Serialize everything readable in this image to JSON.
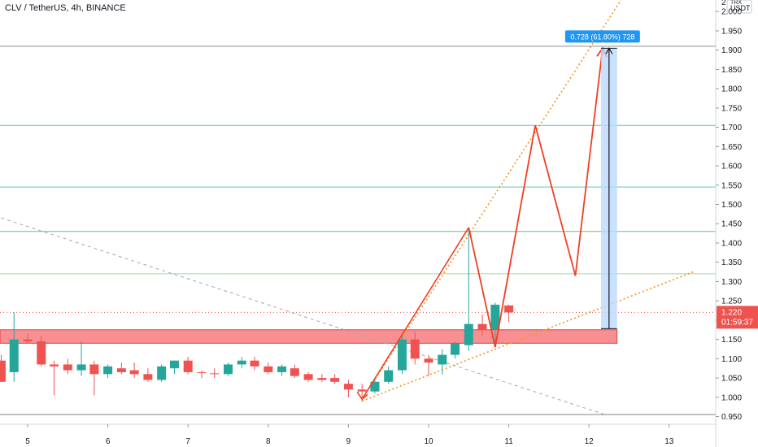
{
  "header": {
    "title": "CLV / TetherUS, 4h, BINANCE"
  },
  "axis": {
    "currency": "USDT",
    "currency_top": "TRX",
    "top_tick": "2"
  },
  "price_badge": {
    "price": "1.220",
    "countdown": "01:59:37"
  },
  "measure_label": "0.728 (61.80%) 728",
  "colors": {
    "up": "#26a69a",
    "down": "#ef5350",
    "projection": "#f23f22",
    "trend": "#f7931a",
    "zone_fill": "#f77c80",
    "zone_border": "#e04040",
    "measure_fill": "#bbd9fb",
    "measure_label_bg": "#2196f3",
    "hline_teal": "#5ec8c2",
    "hline_green": "#6fbf73",
    "price_line": "#ef5350"
  },
  "chart_data": {
    "type": "candlestick",
    "symbol": "CLV / TetherUS",
    "interval": "4h",
    "exchange": "BINANCE",
    "ylim": [
      0.93,
      2.03
    ],
    "y_ticks": [
      "2.000",
      "1.950",
      "1.900",
      "1.850",
      "1.800",
      "1.750",
      "1.700",
      "1.650",
      "1.600",
      "1.550",
      "1.500",
      "1.450",
      "1.400",
      "1.350",
      "1.300",
      "1.250",
      "1.200",
      "1.150",
      "1.100",
      "1.050",
      "1.000",
      "0.950"
    ],
    "x_ticks": [
      {
        "label": "5",
        "day": 5
      },
      {
        "label": "6",
        "day": 6
      },
      {
        "label": "7",
        "day": 7
      },
      {
        "label": "8",
        "day": 8
      },
      {
        "label": "9",
        "day": 9
      },
      {
        "label": "10",
        "day": 10
      },
      {
        "label": "11",
        "day": 11
      },
      {
        "label": "12",
        "day": 12
      },
      {
        "label": "13",
        "day": 13
      }
    ],
    "candles": [
      {
        "day": 4.67,
        "open": 1.095,
        "high": 1.11,
        "low": 1.04,
        "close": 1.04
      },
      {
        "day": 4.83,
        "open": 1.065,
        "high": 1.22,
        "low": 1.04,
        "close": 1.15
      },
      {
        "day": 5.0,
        "open": 1.15,
        "high": 1.165,
        "low": 1.14,
        "close": 1.145
      },
      {
        "day": 5.17,
        "open": 1.145,
        "high": 1.16,
        "low": 1.08,
        "close": 1.085
      },
      {
        "day": 5.33,
        "open": 1.085,
        "high": 1.095,
        "low": 1.005,
        "close": 1.08
      },
      {
        "day": 5.5,
        "open": 1.085,
        "high": 1.1,
        "low": 1.06,
        "close": 1.07
      },
      {
        "day": 5.67,
        "open": 1.07,
        "high": 1.145,
        "low": 1.055,
        "close": 1.085
      },
      {
        "day": 5.83,
        "open": 1.085,
        "high": 1.095,
        "low": 1.005,
        "close": 1.06
      },
      {
        "day": 6.0,
        "open": 1.06,
        "high": 1.085,
        "low": 1.05,
        "close": 1.08
      },
      {
        "day": 6.17,
        "open": 1.075,
        "high": 1.09,
        "low": 1.06,
        "close": 1.065
      },
      {
        "day": 6.33,
        "open": 1.07,
        "high": 1.09,
        "low": 1.05,
        "close": 1.06
      },
      {
        "day": 6.5,
        "open": 1.06,
        "high": 1.075,
        "low": 1.04,
        "close": 1.045
      },
      {
        "day": 6.67,
        "open": 1.045,
        "high": 1.085,
        "low": 1.04,
        "close": 1.08
      },
      {
        "day": 6.83,
        "open": 1.075,
        "high": 1.095,
        "low": 1.06,
        "close": 1.095
      },
      {
        "day": 7.0,
        "open": 1.095,
        "high": 1.105,
        "low": 1.06,
        "close": 1.065
      },
      {
        "day": 7.17,
        "open": 1.065,
        "high": 1.07,
        "low": 1.05,
        "close": 1.063
      },
      {
        "day": 7.33,
        "open": 1.062,
        "high": 1.075,
        "low": 1.05,
        "close": 1.06
      },
      {
        "day": 7.5,
        "open": 1.06,
        "high": 1.09,
        "low": 1.055,
        "close": 1.085
      },
      {
        "day": 7.67,
        "open": 1.085,
        "high": 1.105,
        "low": 1.075,
        "close": 1.095
      },
      {
        "day": 7.83,
        "open": 1.095,
        "high": 1.105,
        "low": 1.07,
        "close": 1.08
      },
      {
        "day": 8.0,
        "open": 1.08,
        "high": 1.09,
        "low": 1.06,
        "close": 1.065
      },
      {
        "day": 8.17,
        "open": 1.065,
        "high": 1.085,
        "low": 1.055,
        "close": 1.08
      },
      {
        "day": 8.33,
        "open": 1.075,
        "high": 1.085,
        "low": 1.05,
        "close": 1.055
      },
      {
        "day": 8.5,
        "open": 1.06,
        "high": 1.065,
        "low": 1.04,
        "close": 1.045
      },
      {
        "day": 8.67,
        "open": 1.05,
        "high": 1.06,
        "low": 1.04,
        "close": 1.045
      },
      {
        "day": 8.83,
        "open": 1.05,
        "high": 1.06,
        "low": 1.035,
        "close": 1.04
      },
      {
        "day": 9.0,
        "open": 1.035,
        "high": 1.045,
        "low": 1.0,
        "close": 1.02
      },
      {
        "day": 9.17,
        "open": 1.02,
        "high": 1.035,
        "low": 0.99,
        "close": 1.015
      },
      {
        "day": 9.33,
        "open": 1.015,
        "high": 1.05,
        "low": 1.01,
        "close": 1.04
      },
      {
        "day": 9.5,
        "open": 1.04,
        "high": 1.08,
        "low": 1.035,
        "close": 1.07
      },
      {
        "day": 9.67,
        "open": 1.07,
        "high": 1.16,
        "low": 1.06,
        "close": 1.15
      },
      {
        "day": 9.83,
        "open": 1.15,
        "high": 1.17,
        "low": 1.085,
        "close": 1.1
      },
      {
        "day": 10.0,
        "open": 1.1,
        "high": 1.11,
        "low": 1.055,
        "close": 1.09
      },
      {
        "day": 10.17,
        "open": 1.085,
        "high": 1.125,
        "low": 1.06,
        "close": 1.11
      },
      {
        "day": 10.33,
        "open": 1.11,
        "high": 1.145,
        "low": 1.1,
        "close": 1.14
      },
      {
        "day": 10.5,
        "open": 1.135,
        "high": 1.44,
        "low": 1.12,
        "close": 1.19
      },
      {
        "day": 10.67,
        "open": 1.19,
        "high": 1.215,
        "low": 1.16,
        "close": 1.175
      },
      {
        "day": 10.83,
        "open": 1.175,
        "high": 1.245,
        "low": 1.13,
        "close": 1.24
      },
      {
        "day": 11.0,
        "open": 1.238,
        "high": 1.24,
        "low": 1.195,
        "close": 1.22
      }
    ],
    "zone": {
      "from": 1.14,
      "to": 1.175,
      "day_end": 12.35
    },
    "horizontal_levels": [
      {
        "price": 1.91,
        "kind": "gray"
      },
      {
        "price": 1.705,
        "kind": "teal"
      },
      {
        "price": 1.545,
        "kind": "teal"
      },
      {
        "price": 1.43,
        "kind": "green"
      },
      {
        "price": 1.32,
        "kind": "green-light"
      },
      {
        "price": 0.955,
        "kind": "gray"
      }
    ],
    "last_price": 1.22,
    "measure": {
      "day_start": 12.15,
      "day_end": 12.35,
      "from": 1.178,
      "to": 1.905
    },
    "projection_path": [
      {
        "day": 10.5,
        "price": 1.44
      },
      {
        "day": 10.83,
        "price": 1.13
      },
      {
        "day": 11.33,
        "price": 1.705
      },
      {
        "day": 11.83,
        "price": 1.315
      },
      {
        "day": 12.17,
        "price": 1.905
      }
    ],
    "arrow_up": {
      "from": {
        "day": 9.17,
        "price": 0.995
      },
      "to": {
        "day": 10.5,
        "price": 1.44
      }
    },
    "trendline_upper": {
      "from": {
        "day": 9.17,
        "price": 0.995
      },
      "to": {
        "day": 12.4,
        "price": 2.03
      }
    },
    "trendline_lower": {
      "from": {
        "day": 9.17,
        "price": 0.99
      },
      "to": {
        "day": 13.3,
        "price": 1.325
      }
    },
    "trendline_down": {
      "from": {
        "day": 4.67,
        "price": 1.465
      },
      "to": {
        "day": 12.2,
        "price": 0.955
      }
    }
  }
}
